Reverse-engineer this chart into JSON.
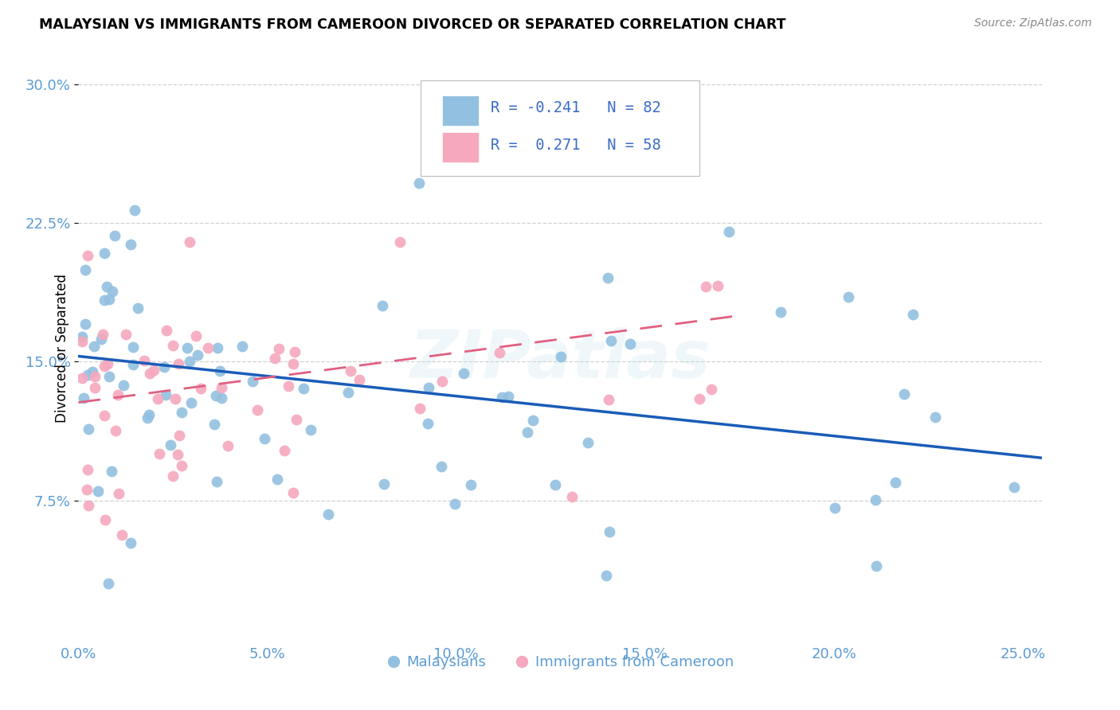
{
  "title": "MALAYSIAN VS IMMIGRANTS FROM CAMEROON DIVORCED OR SEPARATED CORRELATION CHART",
  "source": "Source: ZipAtlas.com",
  "ylabel": "Divorced or Separated",
  "watermark": "ZIPatlas",
  "legend_blue_R": "-0.241",
  "legend_blue_N": "82",
  "legend_pink_R": "0.271",
  "legend_pink_N": "58",
  "legend_label1": "Malaysians",
  "legend_label2": "Immigrants from Cameroon",
  "x_ticks": [
    "0.0%",
    "",
    "",
    "",
    "",
    "",
    "",
    "",
    "",
    "",
    "5.0%",
    "",
    "",
    "",
    "",
    "",
    "",
    "",
    "",
    "",
    "10.0%",
    "",
    "",
    "",
    "",
    "",
    "",
    "",
    "",
    "",
    "15.0%",
    "",
    "",
    "",
    "",
    "",
    "",
    "",
    "",
    "",
    "20.0%",
    "",
    "",
    "",
    "",
    "",
    "",
    "",
    "",
    "",
    "25.0%"
  ],
  "x_tick_vals": [
    0.0,
    0.05,
    0.1,
    0.15,
    0.2,
    0.25
  ],
  "x_tick_labels": [
    "0.0%",
    "5.0%",
    "10.0%",
    "15.0%",
    "20.0%",
    "25.0%"
  ],
  "y_ticks_right": [
    "7.5%",
    "15.0%",
    "22.5%",
    "30.0%"
  ],
  "y_tick_vals": [
    0.075,
    0.15,
    0.225,
    0.3
  ],
  "xlim": [
    0.0,
    0.255
  ],
  "ylim": [
    0.0,
    0.315
  ],
  "blue_color": "#92C0E0",
  "pink_color": "#F5A8BE",
  "blue_line_color": "#1A5CB8",
  "pink_line_color": "#E06080",
  "bg_color": "#FFFFFF",
  "grid_color": "#CCCCCC",
  "blue_line_x0": 0.0,
  "blue_line_y0": 0.153,
  "blue_line_x1": 0.255,
  "blue_line_y1": 0.098,
  "pink_line_x0": 0.0,
  "pink_line_y0": 0.128,
  "pink_line_x1": 0.175,
  "pink_line_y1": 0.175
}
